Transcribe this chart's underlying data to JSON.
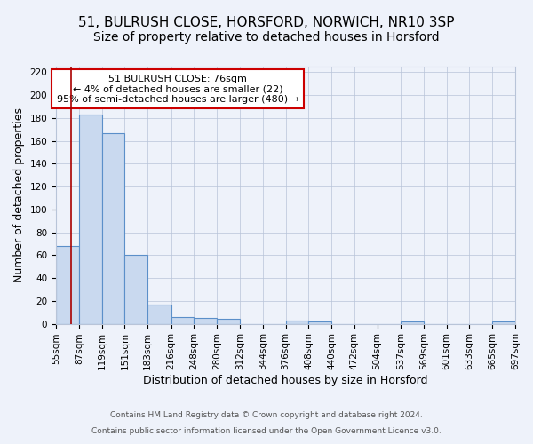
{
  "title1": "51, BULRUSH CLOSE, HORSFORD, NORWICH, NR10 3SP",
  "title2": "Size of property relative to detached houses in Horsford",
  "xlabel": "Distribution of detached houses by size in Horsford",
  "ylabel": "Number of detached properties",
  "bin_edges": [
    55,
    87,
    119,
    151,
    183,
    216,
    248,
    280,
    312,
    344,
    376,
    408,
    440,
    472,
    504,
    537,
    569,
    601,
    633,
    665,
    697
  ],
  "bar_heights": [
    68,
    183,
    167,
    60,
    17,
    6,
    5,
    4,
    0,
    0,
    3,
    2,
    0,
    0,
    0,
    2,
    0,
    0,
    0,
    2
  ],
  "bar_color": "#c9d9ef",
  "bar_edge_color": "#5b8fc9",
  "red_line_x": 76,
  "ylim": [
    0,
    225
  ],
  "yticks": [
    0,
    20,
    40,
    60,
    80,
    100,
    120,
    140,
    160,
    180,
    200,
    220
  ],
  "annotation_title": "51 BULRUSH CLOSE: 76sqm",
  "annotation_line1": "← 4% of detached houses are smaller (22)",
  "annotation_line2": "95% of semi-detached houses are larger (480) →",
  "annotation_box_color": "#ffffff",
  "annotation_box_edge": "#cc0000",
  "footer1": "Contains HM Land Registry data © Crown copyright and database right 2024.",
  "footer2": "Contains public sector information licensed under the Open Government Licence v3.0.",
  "title1_fontsize": 11,
  "title2_fontsize": 10,
  "axis_label_fontsize": 9,
  "tick_fontsize": 7.5,
  "background_color": "#eef2fa"
}
